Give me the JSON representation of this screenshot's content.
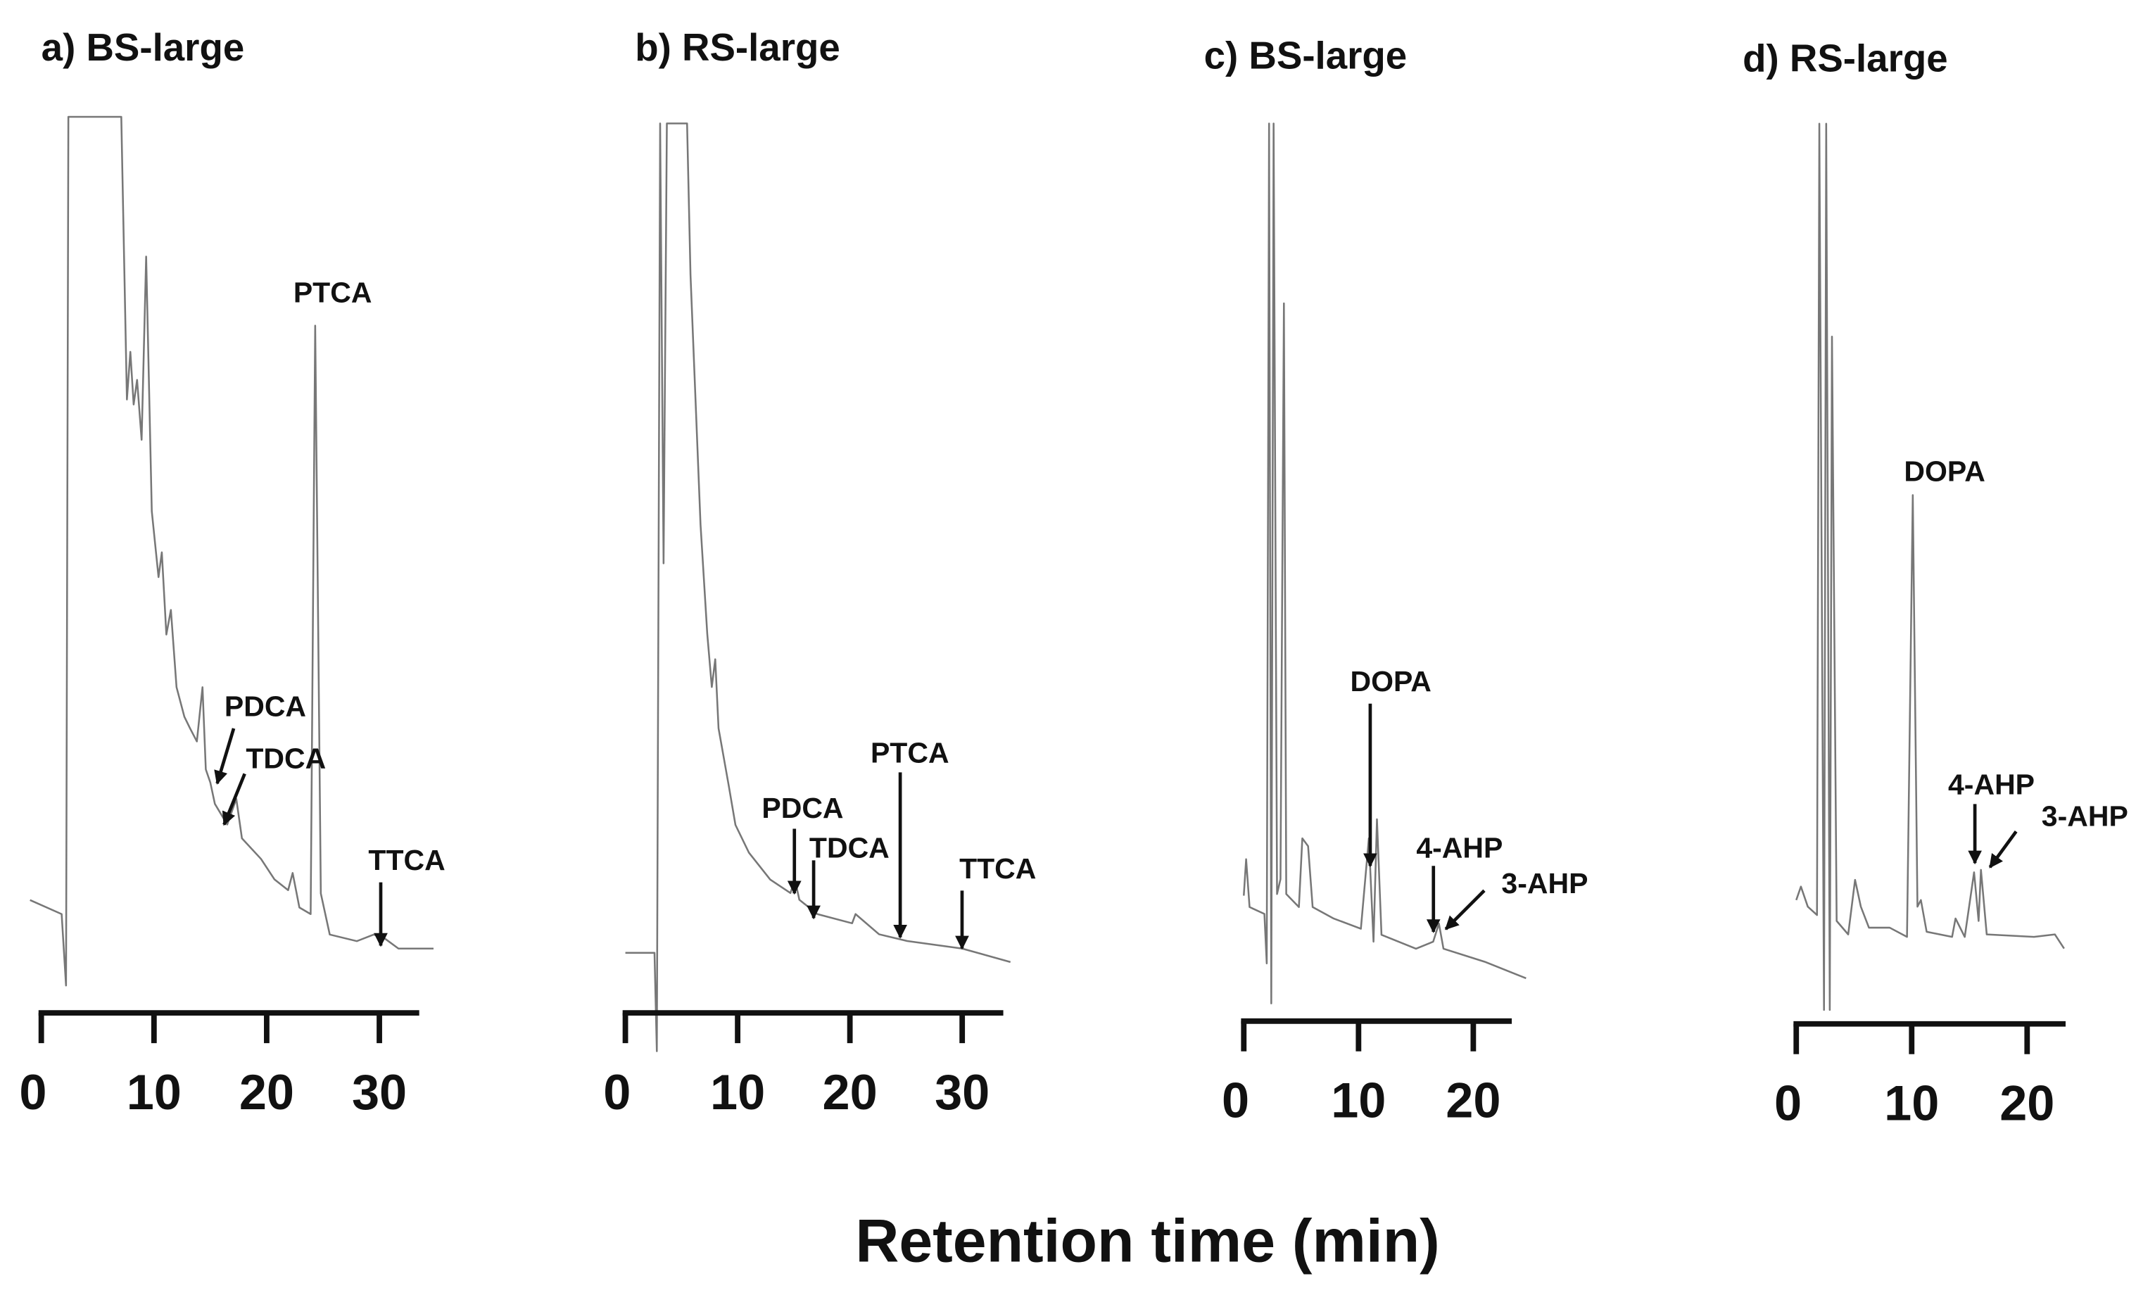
{
  "figure": {
    "xlabel": "Retention time (min)"
  },
  "chart_data": [
    {
      "type": "line",
      "title": "a) BS-large",
      "xlim": [
        0,
        33.5
      ],
      "ticks": [
        0,
        10,
        20,
        30
      ],
      "tick_labels": [
        "0",
        "10",
        "20",
        "30"
      ],
      "y_unit": "relative intensity (unlabeled)",
      "line_color": "#777777",
      "x": [
        -1,
        1.8,
        2.2,
        2.4,
        7.1,
        7.6,
        7.9,
        8.2,
        8.5,
        8.9,
        9.3,
        9.8,
        10.4,
        10.7,
        11.1,
        11.5,
        12,
        12.7,
        13.2,
        13.8,
        14.3,
        14.6,
        15,
        15.4,
        16.5,
        17.3,
        17.8,
        19.5,
        20.7,
        21.9,
        22.3,
        22.9,
        23.9,
        24.3,
        24.8,
        25.6,
        28,
        29.5,
        30.5,
        31.7,
        34.8
      ],
      "y": [
        4.7,
        3,
        -5.7,
        100,
        100,
        65.6,
        71.4,
        65,
        68,
        60.7,
        83,
        52,
        44,
        47,
        37,
        40,
        30.6,
        27,
        25.6,
        24,
        30.6,
        20.6,
        19,
        16.4,
        13.9,
        17,
        12.2,
        9.7,
        7.2,
        5.9,
        8,
        3.8,
        3,
        74.6,
        5.5,
        0.5,
        -0.3,
        0.5,
        0,
        -1.2,
        -1.2
      ],
      "annotations": [
        {
          "text": "PTCA",
          "x": 24.3,
          "arrow": false
        },
        {
          "text": "PDCA",
          "x": 15.4,
          "arrow": true
        },
        {
          "text": "TDCA",
          "x": 16.2,
          "arrow": true
        },
        {
          "text": "TTCA",
          "x": 30.1,
          "arrow": true
        }
      ]
    },
    {
      "type": "line",
      "title": "b) RS-large",
      "xlim": [
        0,
        33.5
      ],
      "ticks": [
        0,
        10,
        20,
        30
      ],
      "tick_labels": [
        "0",
        "10",
        "20",
        "30"
      ],
      "y_unit": "relative intensity (unlabeled)",
      "line_color": "#777777",
      "x": [
        0,
        2.6,
        2.8,
        3.1,
        3.4,
        3.7,
        5.5,
        5.8,
        6.7,
        7.3,
        7.7,
        8.0,
        8.3,
        9.2,
        9.8,
        11,
        12.9,
        14.7,
        15.1,
        15.5,
        17.1,
        20.2,
        20.5,
        22.6,
        25.1,
        30,
        34.3
      ],
      "y": [
        1.1,
        1.1,
        -10.6,
        99.7,
        47.4,
        99.7,
        99.7,
        81.7,
        52,
        39,
        32.7,
        36,
        27.8,
        21,
        16.3,
        13,
        9.8,
        8.2,
        9.8,
        7.4,
        5.7,
        4.6,
        5.7,
        3.3,
        2.5,
        1.6,
        0
      ],
      "annotations": [
        {
          "text": "PDCA",
          "x": 15.0,
          "arrow": true
        },
        {
          "text": "TDCA",
          "x": 16.8,
          "arrow": true
        },
        {
          "text": "PTCA",
          "x": 24.5,
          "arrow": true
        },
        {
          "text": "TTCA",
          "x": 30.0,
          "arrow": true
        }
      ]
    },
    {
      "type": "line",
      "title": "c) BS-large",
      "xlim": [
        0,
        23.5
      ],
      "ticks": [
        0,
        10,
        20
      ],
      "tick_labels": [
        "0",
        "10",
        "20"
      ],
      "y_unit": "relative intensity (unlabeled)",
      "line_color": "#777777",
      "x": [
        0,
        0.2,
        0.5,
        1.8,
        2.0,
        2.2,
        2.4,
        2.6,
        2.9,
        3.2,
        3.5,
        3.7,
        4.8,
        5.1,
        5.6,
        6.0,
        7.8,
        10.2,
        10.9,
        11.3,
        11.6,
        12.0,
        15.0,
        16.5,
        17.0,
        17.4,
        21.0,
        24.6
      ],
      "y": [
        10.8,
        15,
        9.5,
        8.7,
        3,
        99.7,
        -1.6,
        99.7,
        11,
        12.7,
        79,
        11,
        9.5,
        17.4,
        16.5,
        9.5,
        8.2,
        7,
        17.4,
        5.5,
        19.6,
        6.3,
        4.7,
        5.5,
        7.6,
        4.7,
        3.2,
        1.3
      ],
      "annotations": [
        {
          "text": "DOPA",
          "x": 11.0,
          "arrow": true
        },
        {
          "text": "4-AHP",
          "x": 16.5,
          "arrow": true
        },
        {
          "text": "3-AHP",
          "x": 17.4,
          "arrow": true
        }
      ]
    },
    {
      "type": "line",
      "title": "d) RS-large",
      "xlim": [
        0,
        23.5
      ],
      "ticks": [
        0,
        10,
        20
      ],
      "tick_labels": [
        "0",
        "10",
        "20"
      ],
      "y_unit": "relative intensity (unlabeled)",
      "line_color": "#777777",
      "x": [
        0,
        0.4,
        1,
        1.8,
        2.0,
        2.4,
        2.6,
        2.9,
        3.1,
        3.5,
        4.5,
        5.1,
        5.6,
        6.3,
        8.1,
        9.6,
        10.1,
        10.5,
        10.8,
        11.3,
        13.5,
        13.8,
        14.6,
        15.4,
        15.8,
        16.0,
        16.5,
        20.6,
        22.4,
        23.2
      ],
      "y": [
        7.4,
        9,
        6.6,
        5.6,
        100,
        -5.7,
        100,
        -5.7,
        74.6,
        4.9,
        3.3,
        9.8,
        6.6,
        4.1,
        4.1,
        3,
        55.7,
        6.6,
        7.4,
        3.6,
        3,
        5.2,
        3,
        10.7,
        4.9,
        11,
        3.3,
        3,
        3.3,
        1.6
      ],
      "annotations": [
        {
          "text": "DOPA",
          "x": 10.1,
          "arrow": false
        },
        {
          "text": "4-AHP",
          "x": 15.4,
          "arrow": true
        },
        {
          "text": "3-AHP",
          "x": 16.0,
          "arrow": true
        }
      ]
    }
  ]
}
